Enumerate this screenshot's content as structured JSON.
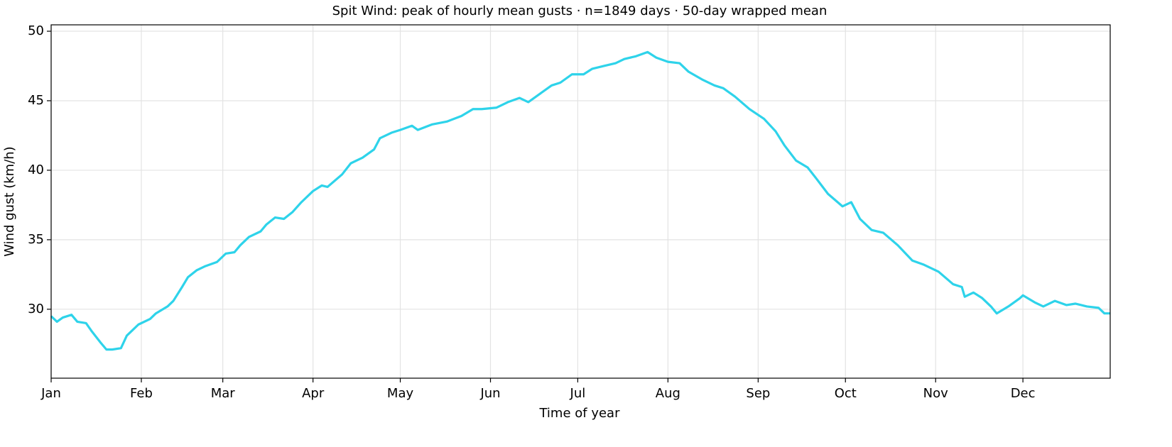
{
  "chart_data": {
    "type": "line",
    "title": "Spit Wind: peak of hourly mean gusts · n=1849 days · 50-day wrapped mean",
    "x_label": "Time of year",
    "y_label": "Wind gust (km/h)",
    "x": [
      1,
      3,
      5,
      8,
      10,
      13,
      15,
      18,
      20,
      22,
      25,
      27,
      31,
      35,
      37,
      41,
      43,
      46,
      48,
      51,
      54,
      58,
      61,
      64,
      66,
      69,
      73,
      75,
      78,
      81,
      84,
      87,
      91,
      94,
      96,
      101,
      104,
      108,
      112,
      114,
      118,
      121,
      125,
      127,
      132,
      137,
      142,
      146,
      149,
      154,
      158,
      162,
      165,
      169,
      173,
      176,
      180,
      184,
      187,
      191,
      195,
      198,
      202,
      206,
      209,
      213,
      217,
      220,
      225,
      229,
      232,
      236,
      241,
      246,
      250,
      253,
      257,
      261,
      264,
      268,
      273,
      276,
      279,
      283,
      287,
      292,
      297,
      301,
      306,
      311,
      314,
      315,
      318,
      321,
      324,
      326,
      330,
      334,
      335,
      339,
      342,
      346,
      350,
      353,
      357,
      361,
      363,
      365
    ],
    "series": [
      {
        "name": "Wind gust",
        "color": "#2ed3ea",
        "values": [
          29.5,
          29.1,
          29.4,
          29.6,
          29.1,
          29.0,
          28.4,
          27.6,
          27.1,
          27.1,
          27.2,
          28.1,
          28.9,
          29.3,
          29.7,
          30.2,
          30.6,
          31.6,
          32.3,
          32.8,
          33.1,
          33.4,
          34.0,
          34.1,
          34.6,
          35.2,
          35.6,
          36.1,
          36.6,
          36.5,
          37.0,
          37.7,
          38.5,
          38.9,
          38.8,
          39.7,
          40.5,
          40.9,
          41.5,
          42.3,
          42.7,
          42.9,
          43.2,
          42.9,
          43.3,
          43.5,
          43.9,
          44.4,
          44.4,
          44.5,
          44.9,
          45.2,
          44.9,
          45.5,
          46.1,
          46.3,
          46.9,
          46.9,
          47.3,
          47.5,
          47.7,
          48.0,
          48.2,
          48.5,
          48.1,
          47.8,
          47.7,
          47.1,
          46.5,
          46.1,
          45.9,
          45.3,
          44.4,
          43.7,
          42.8,
          41.8,
          40.7,
          40.2,
          39.4,
          38.3,
          37.4,
          37.7,
          36.5,
          35.7,
          35.5,
          34.6,
          33.5,
          33.2,
          32.7,
          31.8,
          31.6,
          30.9,
          31.2,
          30.8,
          30.2,
          29.7,
          30.2,
          30.8,
          31.0,
          30.5,
          30.2,
          30.6,
          30.3,
          30.4,
          30.2,
          30.1,
          29.7,
          29.7
        ]
      }
    ],
    "xlim": [
      1,
      365
    ],
    "xticks": [
      {
        "value": 1,
        "label": "Jan"
      },
      {
        "value": 32,
        "label": "Feb"
      },
      {
        "value": 60,
        "label": "Mar"
      },
      {
        "value": 91,
        "label": "Apr"
      },
      {
        "value": 121,
        "label": "May"
      },
      {
        "value": 152,
        "label": "Jun"
      },
      {
        "value": 182,
        "label": "Jul"
      },
      {
        "value": 213,
        "label": "Aug"
      },
      {
        "value": 244,
        "label": "Sep"
      },
      {
        "value": 274,
        "label": "Oct"
      },
      {
        "value": 305,
        "label": "Nov"
      },
      {
        "value": 335,
        "label": "Dec"
      }
    ],
    "ylim": [
      25.04,
      50.46
    ],
    "yticks": [
      30,
      35,
      40,
      45,
      50
    ],
    "grid": true
  }
}
